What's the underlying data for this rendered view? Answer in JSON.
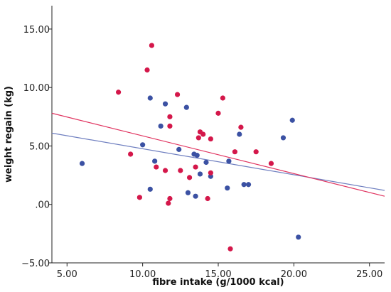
{
  "chart_data": {
    "type": "scatter",
    "title": "",
    "xlabel": "fibre intake (g/1000 kcal)",
    "ylabel": "weight regain (kg)",
    "xlim": [
      4.0,
      26.0
    ],
    "ylim": [
      -5.0,
      17.0
    ],
    "xticks": [
      5.0,
      10.0,
      15.0,
      20.0,
      25.0
    ],
    "xtick_labels": [
      "5.00",
      "10.00",
      "15.00",
      "20.00",
      "25.00"
    ],
    "yticks": [
      -5.0,
      0.0,
      5.0,
      10.0,
      15.0
    ],
    "ytick_labels": [
      "−5.00",
      ".00",
      "5.00",
      "10.00",
      "15.00"
    ],
    "grid": false,
    "series": [
      {
        "color": "#3b51a3",
        "points": [
          [
            6.0,
            3.5
          ],
          [
            10.0,
            5.1
          ],
          [
            10.5,
            9.1
          ],
          [
            10.8,
            3.7
          ],
          [
            11.2,
            6.7
          ],
          [
            11.5,
            8.6
          ],
          [
            10.5,
            1.3
          ],
          [
            12.4,
            4.7
          ],
          [
            12.9,
            8.3
          ],
          [
            13.0,
            1.0
          ],
          [
            13.4,
            4.3
          ],
          [
            13.6,
            4.2
          ],
          [
            13.8,
            2.6
          ],
          [
            14.2,
            3.6
          ],
          [
            14.5,
            2.4
          ],
          [
            13.5,
            0.7
          ],
          [
            15.7,
            3.7
          ],
          [
            15.6,
            1.4
          ],
          [
            16.4,
            6.0
          ],
          [
            16.7,
            1.7
          ],
          [
            17.0,
            1.7
          ],
          [
            19.3,
            5.7
          ],
          [
            19.9,
            7.2
          ],
          [
            20.3,
            -2.8
          ]
        ]
      },
      {
        "color": "#d4174a",
        "points": [
          [
            8.4,
            9.6
          ],
          [
            9.2,
            4.3
          ],
          [
            9.8,
            0.6
          ],
          [
            10.3,
            11.5
          ],
          [
            10.6,
            13.6
          ],
          [
            10.9,
            3.2
          ],
          [
            11.5,
            2.9
          ],
          [
            11.7,
            0.1
          ],
          [
            11.8,
            0.5
          ],
          [
            11.8,
            7.5
          ],
          [
            11.8,
            6.7
          ],
          [
            12.3,
            9.4
          ],
          [
            12.5,
            2.9
          ],
          [
            13.1,
            2.3
          ],
          [
            13.5,
            3.2
          ],
          [
            13.7,
            5.7
          ],
          [
            13.8,
            6.2
          ],
          [
            14.0,
            6.0
          ],
          [
            14.3,
            0.5
          ],
          [
            14.5,
            5.6
          ],
          [
            14.5,
            2.7
          ],
          [
            15.0,
            7.8
          ],
          [
            15.3,
            9.1
          ],
          [
            15.8,
            -3.8
          ],
          [
            16.1,
            4.5
          ],
          [
            16.5,
            6.6
          ],
          [
            17.5,
            4.5
          ],
          [
            18.5,
            3.5
          ]
        ]
      }
    ],
    "fit_lines": [
      {
        "color": "#6f7fc0",
        "x": [
          4.0,
          26.0
        ],
        "y": [
          6.1,
          1.2
        ]
      },
      {
        "color": "#e0335f",
        "x": [
          4.0,
          26.0
        ],
        "y": [
          7.8,
          0.7
        ]
      }
    ]
  }
}
